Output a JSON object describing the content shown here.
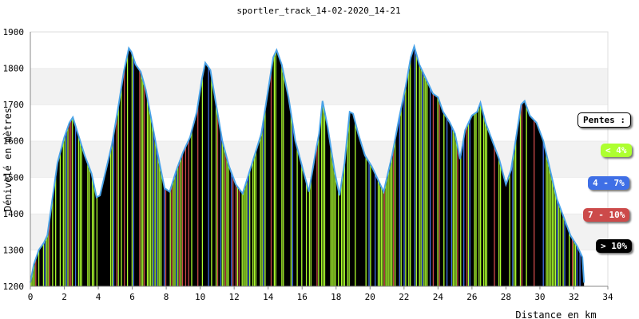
{
  "chart_data": {
    "type": "area",
    "title": "sportler_track_14-02-2020_14-21",
    "xlabel": "Distance en km",
    "ylabel": "Dénivelé en mètres",
    "xlim": [
      0,
      34
    ],
    "ylim": [
      1200,
      1900
    ],
    "x_ticks": [
      "0",
      "2",
      "4",
      "6",
      "8",
      "10",
      "12",
      "14",
      "16",
      "18",
      "20",
      "22",
      "24",
      "26",
      "28",
      "30",
      "32",
      "34"
    ],
    "y_ticks": [
      "1200",
      "1300",
      "1400",
      "1500",
      "1600",
      "1700",
      "1800",
      "1900"
    ],
    "grid": "horizontal bands",
    "legend_position": "right",
    "colors": {
      "line": "#4aa3e8",
      "fill": "#000000",
      "slope_low": "#adff2f",
      "slope_mid": "#3f6fe6",
      "slope_high": "#cc4a4a",
      "slope_steep": "#000000",
      "band": "#f2f2f2"
    },
    "profile": {
      "x": [
        0,
        0.2,
        0.5,
        0.8,
        1.0,
        1.3,
        1.6,
        2.0,
        2.3,
        2.5,
        2.8,
        3.2,
        3.6,
        3.9,
        4.1,
        4.4,
        4.8,
        5.2,
        5.5,
        5.8,
        5.95,
        6.2,
        6.5,
        6.8,
        7.2,
        7.6,
        7.9,
        8.2,
        8.6,
        9.0,
        9.4,
        9.8,
        10.1,
        10.3,
        10.6,
        10.9,
        11.3,
        11.7,
        12.1,
        12.5,
        12.8,
        13.2,
        13.6,
        14.0,
        14.3,
        14.5,
        14.8,
        15.2,
        15.6,
        16.0,
        16.4,
        16.8,
        17.0,
        17.2,
        17.5,
        17.9,
        18.2,
        18.5,
        18.8,
        19.0,
        19.3,
        19.7,
        20.1,
        20.5,
        20.8,
        21.3,
        21.7,
        22.1,
        22.4,
        22.6,
        22.9,
        23.3,
        23.7,
        24.0,
        24.3,
        24.7,
        25.0,
        25.3,
        25.6,
        26.0,
        26.3,
        26.5,
        26.8,
        27.2,
        27.6,
        28.0,
        28.3,
        28.6,
        28.9,
        29.1,
        29.4,
        29.8,
        30.2,
        30.6,
        31.0,
        31.4,
        31.8,
        32.2,
        32.5,
        32.6
      ],
      "y": [
        1210,
        1260,
        1300,
        1320,
        1340,
        1440,
        1540,
        1610,
        1650,
        1665,
        1620,
        1560,
        1510,
        1445,
        1450,
        1510,
        1590,
        1700,
        1790,
        1855,
        1845,
        1810,
        1790,
        1740,
        1640,
        1540,
        1470,
        1460,
        1520,
        1570,
        1610,
        1680,
        1770,
        1815,
        1795,
        1710,
        1600,
        1530,
        1480,
        1455,
        1500,
        1560,
        1620,
        1740,
        1830,
        1850,
        1810,
        1720,
        1600,
        1530,
        1460,
        1570,
        1620,
        1710,
        1640,
        1520,
        1450,
        1540,
        1680,
        1675,
        1620,
        1560,
        1530,
        1490,
        1460,
        1560,
        1660,
        1750,
        1830,
        1860,
        1810,
        1770,
        1730,
        1720,
        1680,
        1650,
        1620,
        1550,
        1630,
        1670,
        1680,
        1705,
        1650,
        1600,
        1550,
        1480,
        1520,
        1610,
        1700,
        1710,
        1670,
        1650,
        1600,
        1520,
        1440,
        1390,
        1340,
        1310,
        1280,
        1210
      ]
    },
    "series": [
      {
        "name": "< 4%"
      },
      {
        "name": "4 - 7%"
      },
      {
        "name": "7 - 10%"
      },
      {
        "name": "> 10%"
      }
    ],
    "legend_title": "Pentes :"
  }
}
